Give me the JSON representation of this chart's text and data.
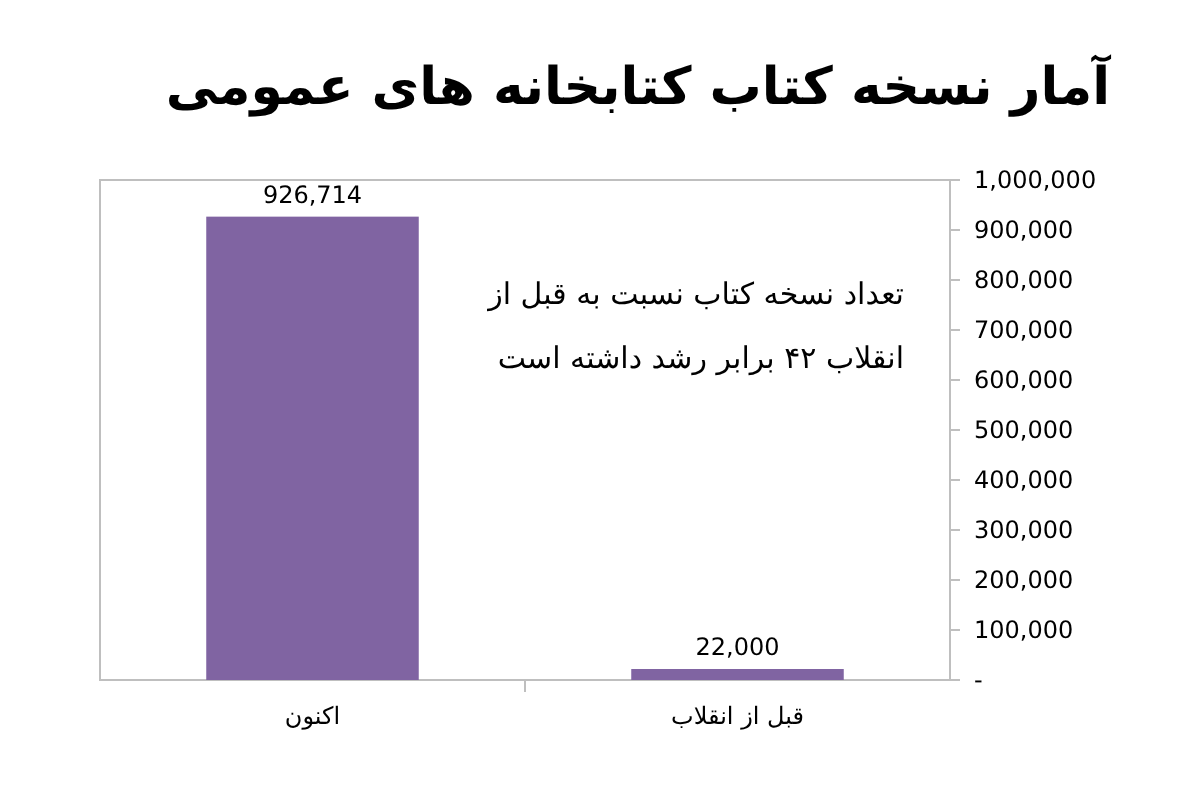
{
  "chart_data": {
    "type": "bar",
    "title": "آمار نسخه کتاب کتابخانه های عمومی",
    "categories": [
      "اکنون",
      "قبل از انقلاب"
    ],
    "values": [
      926714,
      22000
    ],
    "value_labels": [
      "926,714",
      "22,000"
    ],
    "color": "#8064a2",
    "ylim": [
      0,
      1000000
    ],
    "yticks": [
      {
        "value": 0,
        "label": "-"
      },
      {
        "value": 100000,
        "label": "100,000"
      },
      {
        "value": 200000,
        "label": "200,000"
      },
      {
        "value": 300000,
        "label": "300,000"
      },
      {
        "value": 400000,
        "label": "400,000"
      },
      {
        "value": 500000,
        "label": "500,000"
      },
      {
        "value": 600000,
        "label": "600,000"
      },
      {
        "value": 700000,
        "label": "700,000"
      },
      {
        "value": 800000,
        "label": "800,000"
      },
      {
        "value": 900000,
        "label": "900,000"
      },
      {
        "value": 1000000,
        "label": "1,000,000"
      }
    ],
    "annotations": [
      "تعداد نسخه کتاب نسبت به قبل از انقلاب ۴۲ برابر رشد داشته است"
    ]
  }
}
